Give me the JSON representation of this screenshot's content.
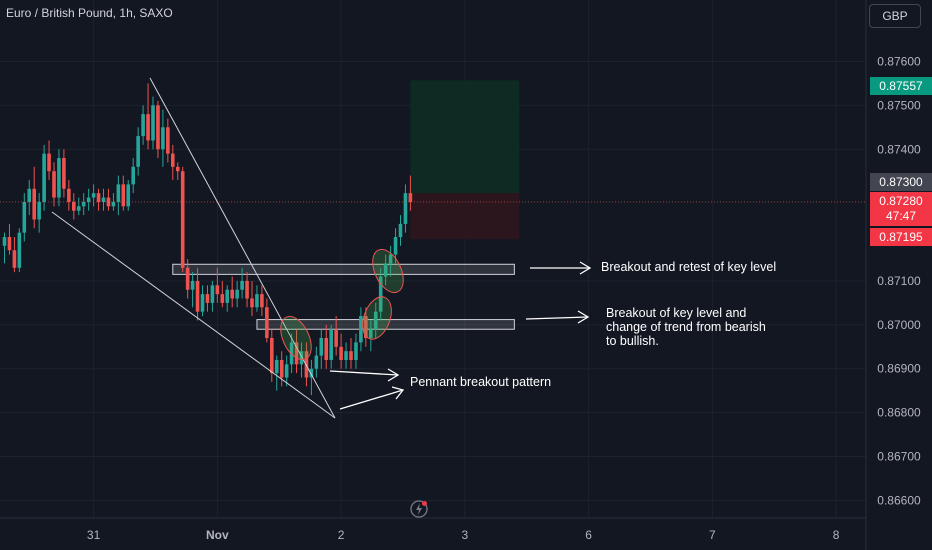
{
  "header": {
    "title": "Euro / British Pound, 1h, SAXO",
    "currency": "GBP"
  },
  "colors": {
    "background": "#131722",
    "up": "#26a69a",
    "down": "#ef5350",
    "grid": "#1e222d",
    "profit_zone": "#0d2b22",
    "loss_zone": "#2c161d",
    "green_tag": "#089981",
    "red_tag": "#f23645",
    "gray_tag": "#434651"
  },
  "price_tags": {
    "top_green": "0.87557",
    "current_gray": "0.87300",
    "last_red_price": "0.87280",
    "last_red_timer": "47:47",
    "bottom_red": "0.87195"
  },
  "annotations": {
    "breakout_retest": "Breakout and retest of key level",
    "trend_change_line1": "Breakout of key level and",
    "trend_change_line2": "change of trend from bearish",
    "trend_change_line3": "to bullish.",
    "pennant": "Pennant breakout pattern"
  },
  "chart_data": {
    "type": "candlestick",
    "title": "Euro / British Pound, 1h, SAXO",
    "y_ticks": [
      "0.87600",
      "0.87500",
      "0.87400",
      "0.87100",
      "0.87000",
      "0.86900",
      "0.86800",
      "0.86700",
      "0.86600"
    ],
    "y_tick_values": [
      0.876,
      0.875,
      0.874,
      0.871,
      0.87,
      0.869,
      0.868,
      0.867,
      0.866
    ],
    "x_ticks": [
      "31",
      "Nov",
      "2",
      "3",
      "6",
      "7",
      "8"
    ],
    "x_tick_index": [
      18,
      43,
      68,
      93,
      118,
      143,
      168
    ],
    "ylim": [
      0.8656,
      0.8774
    ],
    "key_levels": [
      {
        "low": 0.87115,
        "high": 0.87138,
        "from_index": 34,
        "to_index": 103
      },
      {
        "low": 0.8699,
        "high": 0.87012,
        "from_index": 51,
        "to_index": 103
      }
    ],
    "position": {
      "entry": 0.873,
      "target": 0.87557,
      "stop": 0.87195,
      "from_index": 82,
      "to_index": 104
    },
    "candles": [
      [
        0.8718,
        0.8721,
        0.8714,
        0.872
      ],
      [
        0.872,
        0.8723,
        0.8716,
        0.8717
      ],
      [
        0.8717,
        0.872,
        0.8712,
        0.8713
      ],
      [
        0.8713,
        0.8722,
        0.8712,
        0.8721
      ],
      [
        0.8721,
        0.873,
        0.8719,
        0.8728
      ],
      [
        0.8728,
        0.8733,
        0.8725,
        0.8731
      ],
      [
        0.8731,
        0.8736,
        0.8722,
        0.8724
      ],
      [
        0.8724,
        0.873,
        0.8721,
        0.8728
      ],
      [
        0.8728,
        0.8741,
        0.8726,
        0.8739
      ],
      [
        0.8739,
        0.8742,
        0.8733,
        0.8735
      ],
      [
        0.8735,
        0.8737,
        0.8727,
        0.8729
      ],
      [
        0.8729,
        0.874,
        0.8727,
        0.8738
      ],
      [
        0.8738,
        0.874,
        0.8729,
        0.8731
      ],
      [
        0.8731,
        0.8733,
        0.8726,
        0.8728
      ],
      [
        0.8728,
        0.873,
        0.8724,
        0.8726
      ],
      [
        0.8726,
        0.8729,
        0.8725,
        0.8727
      ],
      [
        0.8727,
        0.873,
        0.8725,
        0.8728
      ],
      [
        0.8728,
        0.8731,
        0.8726,
        0.8729
      ],
      [
        0.8729,
        0.8732,
        0.8727,
        0.873
      ],
      [
        0.873,
        0.8731,
        0.8726,
        0.8728
      ],
      [
        0.8728,
        0.8731,
        0.8726,
        0.8729
      ],
      [
        0.8729,
        0.8731,
        0.8726,
        0.8727
      ],
      [
        0.8727,
        0.873,
        0.8726,
        0.8728
      ],
      [
        0.8728,
        0.8734,
        0.8725,
        0.8732
      ],
      [
        0.8732,
        0.8734,
        0.8726,
        0.8727
      ],
      [
        0.8727,
        0.8733,
        0.8726,
        0.8732
      ],
      [
        0.8732,
        0.8738,
        0.873,
        0.8736
      ],
      [
        0.8736,
        0.8745,
        0.8734,
        0.8743
      ],
      [
        0.8743,
        0.875,
        0.8741,
        0.8748
      ],
      [
        0.8748,
        0.8755,
        0.874,
        0.8742
      ],
      [
        0.8742,
        0.8752,
        0.874,
        0.875
      ],
      [
        0.875,
        0.8751,
        0.8738,
        0.874
      ],
      [
        0.874,
        0.8749,
        0.8736,
        0.8745
      ],
      [
        0.8745,
        0.8747,
        0.8737,
        0.8739
      ],
      [
        0.8739,
        0.8741,
        0.8733,
        0.8736
      ],
      [
        0.8736,
        0.8737,
        0.8733,
        0.8735
      ],
      [
        0.8735,
        0.8736,
        0.8712,
        0.8713
      ],
      [
        0.8713,
        0.8715,
        0.8706,
        0.8708
      ],
      [
        0.8708,
        0.8712,
        0.8704,
        0.871
      ],
      [
        0.871,
        0.8713,
        0.8701,
        0.8703
      ],
      [
        0.8703,
        0.8709,
        0.8702,
        0.8707
      ],
      [
        0.8707,
        0.8709,
        0.8703,
        0.8705
      ],
      [
        0.8705,
        0.871,
        0.8703,
        0.8709
      ],
      [
        0.8709,
        0.8713,
        0.8705,
        0.8707
      ],
      [
        0.8707,
        0.871,
        0.8704,
        0.8705
      ],
      [
        0.8705,
        0.8709,
        0.8703,
        0.8708
      ],
      [
        0.8708,
        0.8711,
        0.8704,
        0.8706
      ],
      [
        0.8706,
        0.871,
        0.8704,
        0.8708
      ],
      [
        0.8708,
        0.8713,
        0.8706,
        0.871
      ],
      [
        0.871,
        0.8712,
        0.8704,
        0.8706
      ],
      [
        0.8706,
        0.871,
        0.8702,
        0.8704
      ],
      [
        0.8704,
        0.8709,
        0.8703,
        0.8707
      ],
      [
        0.8707,
        0.8709,
        0.8702,
        0.8704
      ],
      [
        0.8704,
        0.8706,
        0.8696,
        0.8697
      ],
      [
        0.8697,
        0.8699,
        0.8687,
        0.8689
      ],
      [
        0.8689,
        0.8693,
        0.8685,
        0.8692
      ],
      [
        0.8692,
        0.8694,
        0.8686,
        0.8688
      ],
      [
        0.8688,
        0.8693,
        0.8686,
        0.8691
      ],
      [
        0.8691,
        0.8698,
        0.8689,
        0.8696
      ],
      [
        0.8696,
        0.8699,
        0.8689,
        0.8691
      ],
      [
        0.8691,
        0.8696,
        0.8688,
        0.8694
      ],
      [
        0.8694,
        0.8696,
        0.8686,
        0.8688
      ],
      [
        0.8688,
        0.8692,
        0.8684,
        0.869
      ],
      [
        0.869,
        0.8695,
        0.8688,
        0.8693
      ],
      [
        0.8693,
        0.8699,
        0.869,
        0.8697
      ],
      [
        0.8697,
        0.87,
        0.869,
        0.8692
      ],
      [
        0.8692,
        0.87,
        0.869,
        0.8699
      ],
      [
        0.8699,
        0.8702,
        0.8693,
        0.8695
      ],
      [
        0.8695,
        0.8698,
        0.869,
        0.8692
      ],
      [
        0.8692,
        0.8696,
        0.869,
        0.8694
      ],
      [
        0.8694,
        0.8697,
        0.869,
        0.8692
      ],
      [
        0.8692,
        0.8698,
        0.869,
        0.8696
      ],
      [
        0.8696,
        0.8704,
        0.8694,
        0.8702
      ],
      [
        0.8702,
        0.8704,
        0.8695,
        0.8697
      ],
      [
        0.8697,
        0.8701,
        0.8694,
        0.8699
      ],
      [
        0.8699,
        0.8705,
        0.8697,
        0.8703
      ],
      [
        0.8703,
        0.8713,
        0.8701,
        0.8711
      ],
      [
        0.8711,
        0.8716,
        0.8709,
        0.8714
      ],
      [
        0.8714,
        0.8718,
        0.8711,
        0.8716
      ],
      [
        0.8716,
        0.8722,
        0.8714,
        0.872
      ],
      [
        0.872,
        0.8725,
        0.8718,
        0.8723
      ],
      [
        0.8723,
        0.8732,
        0.8721,
        0.873
      ],
      [
        0.873,
        0.8734,
        0.8726,
        0.8728
      ]
    ]
  }
}
